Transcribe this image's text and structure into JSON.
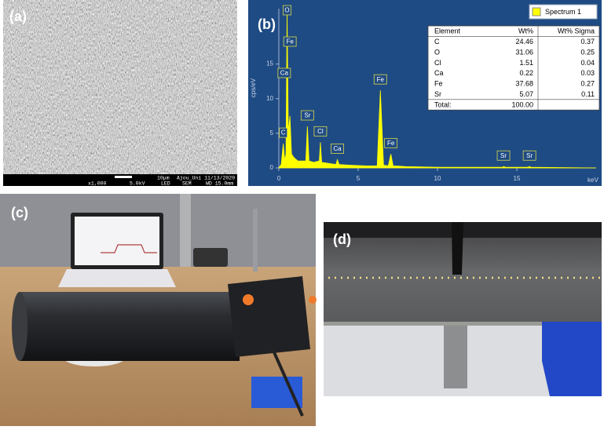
{
  "panels": {
    "a": "(a)",
    "b": "(b)",
    "c": "(c)",
    "d": "(d)"
  },
  "sem": {
    "scale": "10μm",
    "footer_top": "Ajou_Uni 11/13/2020",
    "footer_bottom": [
      "x1,000",
      "5.0kV",
      "LED",
      "SEM",
      "WD 15.0mm"
    ]
  },
  "chart_data": {
    "type": "area",
    "legend": "Spectrum 1",
    "color": "#ffff00",
    "y_label": "cps/eV",
    "x_label": "keV",
    "x": [
      0,
      0.15,
      0.28,
      0.38,
      0.45,
      0.52,
      0.6,
      0.7,
      0.8,
      0.95,
      1.2,
      1.7,
      1.8,
      1.9,
      2.2,
      2.55,
      2.62,
      2.7,
      3.0,
      3.6,
      3.69,
      3.8,
      4.5,
      5.5,
      6.2,
      6.4,
      6.6,
      6.9,
      7.06,
      7.2,
      8,
      10,
      14.1,
      14.16,
      14.3,
      15.7,
      15.8,
      15.9,
      20
    ],
    "values": [
      0,
      0.5,
      3.5,
      1,
      2,
      22.5,
      5,
      7.5,
      2,
      1.5,
      1,
      1,
      6,
      1,
      0.8,
      1,
      3.7,
      0.8,
      0.7,
      0.5,
      1.2,
      0.5,
      0.4,
      0.3,
      0.3,
      11.2,
      0.4,
      0.3,
      2,
      0.3,
      0.2,
      0.1,
      0.1,
      0.2,
      0.1,
      0.1,
      0.2,
      0.1,
      0
    ],
    "xlim": [
      0,
      20
    ],
    "ylim": [
      0,
      23
    ],
    "xticks": [
      0,
      5,
      10,
      15
    ],
    "yticks": [
      0,
      5,
      10,
      15
    ],
    "annotations": [
      {
        "text": "O",
        "x": 0.52
      },
      {
        "text": "Fe",
        "x": 0.7
      },
      {
        "text": "C",
        "x": 0.28
      },
      {
        "text": "Ca",
        "x": 0.34
      },
      {
        "text": "Sr",
        "x": 1.8
      },
      {
        "text": "Cl",
        "x": 2.62
      },
      {
        "text": "Ca",
        "x": 3.69
      },
      {
        "text": "Fe",
        "x": 6.4
      },
      {
        "text": "Fe",
        "x": 7.06
      },
      {
        "text": "Sr",
        "x": 14.16
      },
      {
        "text": "Sr",
        "x": 15.8
      }
    ]
  },
  "table": {
    "header": [
      "Element",
      "Wt%",
      "Wt% Sigma"
    ],
    "rows": [
      [
        "C",
        "24.46",
        "0.37"
      ],
      [
        "O",
        "31.06",
        "0.25"
      ],
      [
        "Cl",
        "1.51",
        "0.04"
      ],
      [
        "Ca",
        "0.22",
        "0.03"
      ],
      [
        "Fe",
        "37.68",
        "0.27"
      ],
      [
        "Sr",
        "5.07",
        "0.11"
      ],
      [
        "Total:",
        "100.00"
      ]
    ]
  }
}
